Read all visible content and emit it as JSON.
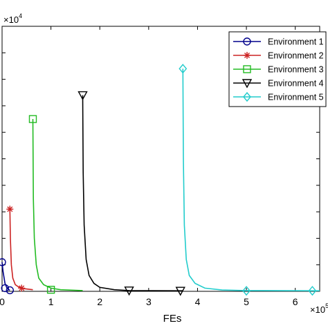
{
  "chart_data": {
    "type": "line",
    "xlabel": "FEs",
    "ylabel": "",
    "x_multiplier": {
      "base": "×10",
      "exponent": "5"
    },
    "y_multiplier": {
      "base": "×10",
      "exponent": "4"
    },
    "xlim": [
      0,
      6.5
    ],
    "ylim": [
      0,
      10
    ],
    "x_ticks": [
      "0",
      "1",
      "2",
      "3",
      "4",
      "5",
      "6"
    ],
    "x_tick_values": [
      0,
      1,
      2,
      3,
      4,
      5,
      6
    ],
    "legend": {
      "position": "top-right"
    },
    "grid": false,
    "series": [
      {
        "name": "Environment 1",
        "color": "#00008b",
        "marker": "circle",
        "points": [
          [
            0,
            1.1
          ],
          [
            0.02,
            0.75
          ],
          [
            0.06,
            0.3
          ],
          [
            0.1,
            0.12
          ],
          [
            0.14,
            0.06
          ],
          [
            0.16,
            0.04
          ]
        ],
        "markers": [
          [
            0,
            1.1
          ],
          [
            0.06,
            0.12
          ],
          [
            0.16,
            0.04
          ]
        ]
      },
      {
        "name": "Environment 2",
        "color": "#cc2222",
        "marker": "star",
        "points": [
          [
            0.16,
            3.1
          ],
          [
            0.17,
            2.0
          ],
          [
            0.19,
            1.0
          ],
          [
            0.22,
            0.5
          ],
          [
            0.27,
            0.25
          ],
          [
            0.35,
            0.15
          ],
          [
            0.45,
            0.1
          ],
          [
            0.63,
            0.06
          ]
        ],
        "markers": [
          [
            0.16,
            3.1
          ],
          [
            0.4,
            0.12
          ]
        ]
      },
      {
        "name": "Environment 3",
        "color": "#22bb22",
        "marker": "square",
        "points": [
          [
            0.63,
            6.5
          ],
          [
            0.64,
            3.5
          ],
          [
            0.66,
            2.0
          ],
          [
            0.7,
            1.0
          ],
          [
            0.75,
            0.5
          ],
          [
            0.85,
            0.25
          ],
          [
            1.0,
            0.12
          ],
          [
            1.2,
            0.06
          ],
          [
            1.65,
            0.03
          ]
        ],
        "markers": [
          [
            0.63,
            6.5
          ],
          [
            1.0,
            0.06
          ]
        ]
      },
      {
        "name": "Environment 4",
        "color": "#000000",
        "marker": "triangle-down",
        "points": [
          [
            1.65,
            7.4
          ],
          [
            1.66,
            4.5
          ],
          [
            1.68,
            2.5
          ],
          [
            1.72,
            1.2
          ],
          [
            1.78,
            0.6
          ],
          [
            1.88,
            0.3
          ],
          [
            2.0,
            0.15
          ],
          [
            2.3,
            0.06
          ],
          [
            2.6,
            0.03
          ],
          [
            3.7,
            0.02
          ]
        ],
        "markers": [
          [
            1.65,
            7.4
          ],
          [
            2.6,
            0.03
          ],
          [
            3.65,
            0.02
          ]
        ]
      },
      {
        "name": "Environment 5",
        "color": "#22cccc",
        "marker": "diamond",
        "points": [
          [
            3.7,
            8.4
          ],
          [
            3.71,
            5.0
          ],
          [
            3.73,
            2.5
          ],
          [
            3.77,
            1.2
          ],
          [
            3.83,
            0.6
          ],
          [
            3.95,
            0.3
          ],
          [
            4.15,
            0.12
          ],
          [
            4.5,
            0.05
          ],
          [
            5.0,
            0.03
          ],
          [
            6.5,
            0.02
          ]
        ],
        "markers": [
          [
            3.7,
            8.4
          ],
          [
            5.0,
            0.02
          ],
          [
            6.35,
            0.02
          ]
        ]
      }
    ]
  }
}
